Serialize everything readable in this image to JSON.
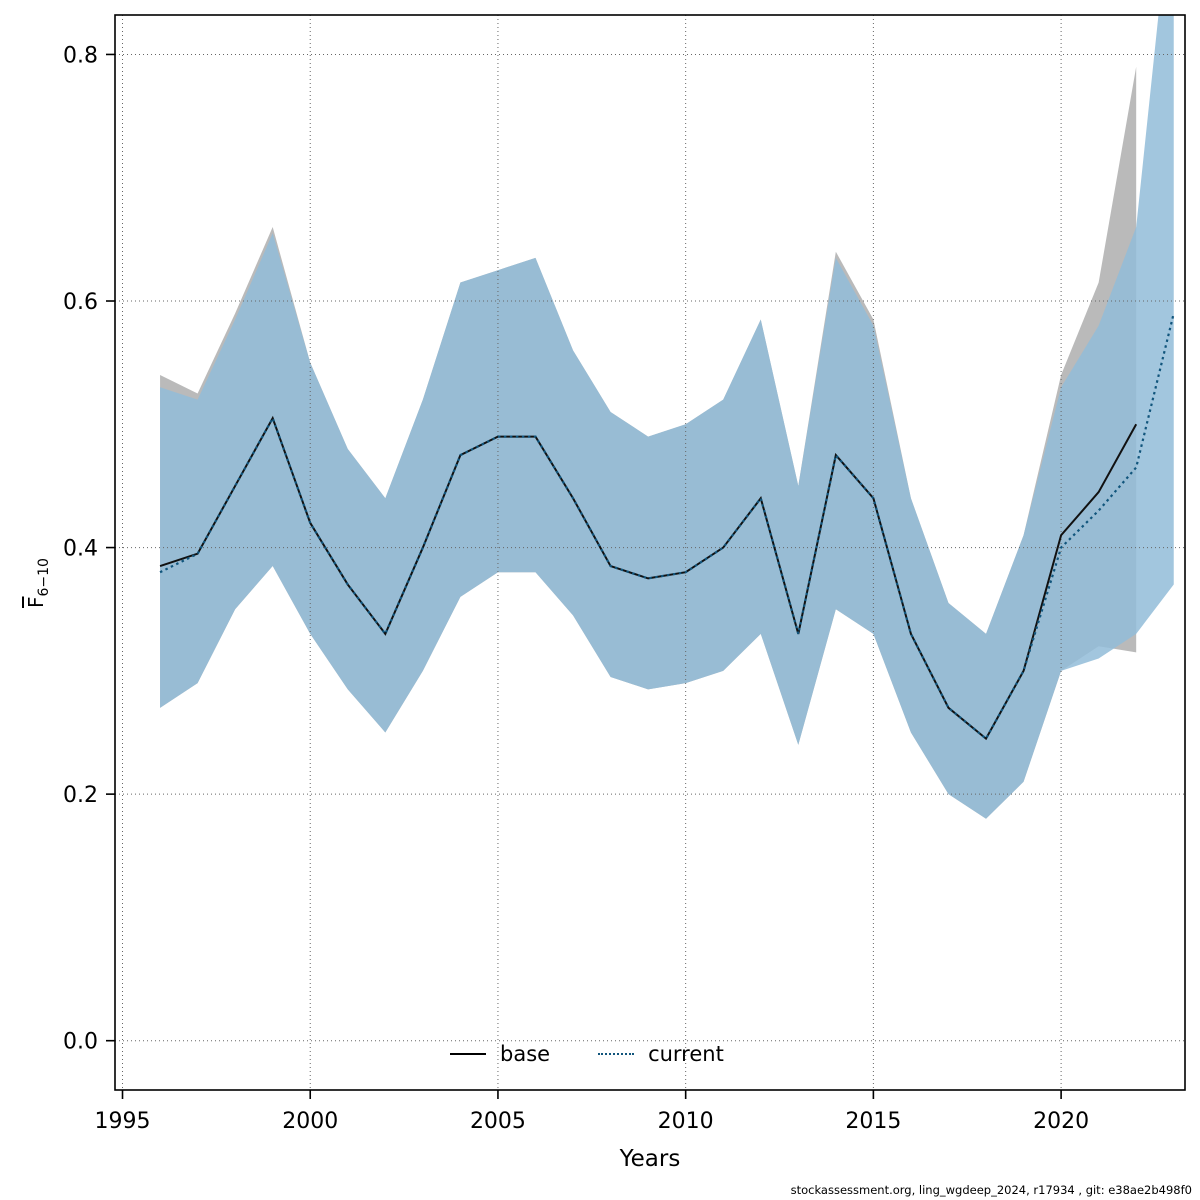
{
  "footer": {
    "text": "stockassessment.org, ling_wgdeep_2024, r17934 , git: e38ae2b498f0"
  },
  "chart_data": {
    "type": "line",
    "title": "",
    "xlabel": "Years",
    "ylabel": "F̄6−10",
    "ylabel_main": "F",
    "ylabel_sub": "6−10",
    "xlim": [
      1994.8,
      2023.3
    ],
    "ylim": [
      -0.04,
      0.832
    ],
    "xticks": [
      1995,
      2000,
      2005,
      2010,
      2015,
      2020
    ],
    "yticks": [
      0.0,
      0.2,
      0.4,
      0.6,
      0.8
    ],
    "grid": true,
    "legend_position": "bottom-center",
    "legend": [
      {
        "label": "base",
        "style": "solid",
        "color": "#000000"
      },
      {
        "label": "current",
        "style": "dotted",
        "color": "#11557c"
      }
    ],
    "series": [
      {
        "name": "base",
        "style": "solid",
        "color": "#111111",
        "band_color": "#b3b3b3",
        "band_opacity": 0.9,
        "years": [
          1996,
          1997,
          1998,
          1999,
          2000,
          2001,
          2002,
          2003,
          2004,
          2005,
          2006,
          2007,
          2008,
          2009,
          2010,
          2011,
          2012,
          2013,
          2014,
          2015,
          2016,
          2017,
          2018,
          2019,
          2020,
          2021,
          2022
        ],
        "est": [
          0.385,
          0.395,
          0.45,
          0.505,
          0.42,
          0.37,
          0.33,
          0.4,
          0.475,
          0.49,
          0.49,
          0.44,
          0.385,
          0.375,
          0.38,
          0.4,
          0.44,
          0.33,
          0.475,
          0.44,
          0.33,
          0.27,
          0.245,
          0.3,
          0.41,
          0.445,
          0.5
        ],
        "low": [
          0.27,
          0.29,
          0.35,
          0.385,
          0.33,
          0.285,
          0.25,
          0.3,
          0.36,
          0.38,
          0.38,
          0.345,
          0.295,
          0.285,
          0.29,
          0.3,
          0.33,
          0.24,
          0.35,
          0.33,
          0.25,
          0.2,
          0.18,
          0.21,
          0.3,
          0.32,
          0.315
        ],
        "high": [
          0.54,
          0.525,
          0.59,
          0.66,
          0.55,
          0.48,
          0.44,
          0.52,
          0.615,
          0.625,
          0.635,
          0.56,
          0.51,
          0.49,
          0.5,
          0.52,
          0.585,
          0.45,
          0.64,
          0.585,
          0.44,
          0.355,
          0.33,
          0.41,
          0.54,
          0.615,
          0.79
        ]
      },
      {
        "name": "current",
        "style": "dotted",
        "color": "#11557c",
        "band_color": "#92bcd8",
        "band_opacity": 0.85,
        "years": [
          1996,
          1997,
          1998,
          1999,
          2000,
          2001,
          2002,
          2003,
          2004,
          2005,
          2006,
          2007,
          2008,
          2009,
          2010,
          2011,
          2012,
          2013,
          2014,
          2015,
          2016,
          2017,
          2018,
          2019,
          2020,
          2021,
          2022,
          2023
        ],
        "est": [
          0.38,
          0.395,
          0.45,
          0.505,
          0.42,
          0.37,
          0.33,
          0.4,
          0.475,
          0.49,
          0.49,
          0.44,
          0.385,
          0.375,
          0.38,
          0.4,
          0.44,
          0.33,
          0.475,
          0.44,
          0.33,
          0.27,
          0.245,
          0.3,
          0.4,
          0.43,
          0.465,
          0.59
        ],
        "low": [
          0.27,
          0.29,
          0.35,
          0.385,
          0.33,
          0.285,
          0.25,
          0.3,
          0.36,
          0.38,
          0.38,
          0.345,
          0.295,
          0.285,
          0.29,
          0.3,
          0.33,
          0.24,
          0.35,
          0.33,
          0.25,
          0.2,
          0.18,
          0.21,
          0.3,
          0.31,
          0.33,
          0.37
        ],
        "high": [
          0.53,
          0.52,
          0.585,
          0.655,
          0.55,
          0.48,
          0.44,
          0.52,
          0.615,
          0.625,
          0.635,
          0.56,
          0.51,
          0.49,
          0.5,
          0.52,
          0.585,
          0.45,
          0.635,
          0.58,
          0.44,
          0.355,
          0.33,
          0.41,
          0.53,
          0.58,
          0.66,
          0.95
        ]
      }
    ]
  }
}
